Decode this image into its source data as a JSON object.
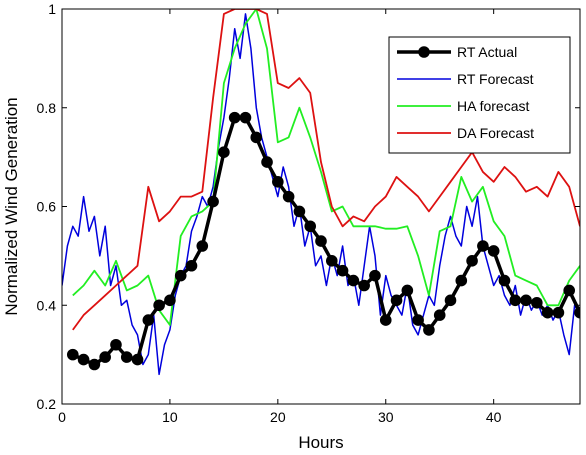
{
  "chart_data": {
    "type": "line",
    "title": "",
    "xlabel": "Hours",
    "ylabel": "Normalized Wind Generation",
    "xlim": [
      0,
      48
    ],
    "ylim": [
      0.2,
      1
    ],
    "x_ticks": [
      0,
      10,
      20,
      30,
      40
    ],
    "y_ticks": [
      0.2,
      0.4,
      0.6,
      0.8,
      1
    ],
    "grid": false,
    "legend_position": "top-right",
    "series": [
      {
        "name": "RT Actual",
        "color": "#000000",
        "marker": "circle",
        "x": [
          1,
          2,
          3,
          4,
          5,
          6,
          7,
          8,
          9,
          10,
          11,
          12,
          13,
          14,
          15,
          16,
          17,
          18,
          19,
          20,
          21,
          22,
          23,
          24,
          25,
          26,
          27,
          28,
          29,
          30,
          31,
          32,
          33,
          34,
          35,
          36,
          37,
          38,
          39,
          40,
          41,
          42,
          43,
          44,
          45,
          46,
          47,
          48
        ],
        "y": [
          0.3,
          0.29,
          0.28,
          0.295,
          0.32,
          0.295,
          0.29,
          0.37,
          0.4,
          0.41,
          0.46,
          0.48,
          0.52,
          0.61,
          0.71,
          0.78,
          0.78,
          0.74,
          0.69,
          0.65,
          0.62,
          0.59,
          0.56,
          0.53,
          0.49,
          0.47,
          0.45,
          0.44,
          0.46,
          0.37,
          0.41,
          0.43,
          0.37,
          0.35,
          0.38,
          0.41,
          0.45,
          0.49,
          0.52,
          0.51,
          0.45,
          0.41,
          0.41,
          0.405,
          0.385,
          0.385,
          0.43,
          0.385
        ]
      },
      {
        "name": "RT Forecast",
        "color": "#0000dd",
        "x": [
          0,
          0.5,
          1,
          1.5,
          2,
          2.5,
          3,
          3.5,
          4,
          4.5,
          5,
          5.5,
          6,
          6.5,
          7,
          7.5,
          8,
          8.5,
          9,
          9.5,
          10,
          10.5,
          11,
          11.5,
          12,
          12.5,
          13,
          13.5,
          14,
          14.5,
          15,
          15.5,
          16,
          16.5,
          17,
          17.5,
          18,
          18.5,
          19,
          19.5,
          20,
          20.5,
          21,
          21.5,
          22,
          22.5,
          23,
          23.5,
          24,
          24.5,
          25,
          25.5,
          26,
          26.5,
          27,
          27.5,
          28,
          28.5,
          29,
          29.5,
          30,
          30.5,
          31,
          31.5,
          32,
          32.5,
          33,
          33.5,
          34,
          34.5,
          35,
          35.5,
          36,
          36.5,
          37,
          37.5,
          38,
          38.5,
          39,
          39.5,
          40,
          40.5,
          41,
          41.5,
          42,
          42.5,
          43,
          43.5,
          44,
          44.5,
          45,
          45.5,
          46,
          46.5,
          47,
          47.5,
          48
        ],
        "y": [
          0.44,
          0.52,
          0.56,
          0.54,
          0.62,
          0.55,
          0.58,
          0.5,
          0.56,
          0.44,
          0.48,
          0.4,
          0.41,
          0.36,
          0.34,
          0.28,
          0.3,
          0.38,
          0.26,
          0.32,
          0.35,
          0.42,
          0.46,
          0.48,
          0.55,
          0.58,
          0.62,
          0.6,
          0.64,
          0.72,
          0.78,
          0.86,
          0.96,
          0.9,
          0.99,
          0.92,
          0.8,
          0.74,
          0.7,
          0.66,
          0.62,
          0.68,
          0.64,
          0.56,
          0.6,
          0.52,
          0.56,
          0.48,
          0.5,
          0.44,
          0.5,
          0.46,
          0.52,
          0.44,
          0.46,
          0.4,
          0.48,
          0.56,
          0.5,
          0.38,
          0.46,
          0.42,
          0.4,
          0.38,
          0.44,
          0.36,
          0.34,
          0.38,
          0.42,
          0.4,
          0.48,
          0.54,
          0.58,
          0.54,
          0.52,
          0.6,
          0.56,
          0.62,
          0.52,
          0.48,
          0.44,
          0.46,
          0.42,
          0.4,
          0.44,
          0.38,
          0.42,
          0.39,
          0.41,
          0.38,
          0.4,
          0.37,
          0.39,
          0.34,
          0.3,
          0.4,
          0.38
        ]
      },
      {
        "name": "HA forecast",
        "color": "#22ee22",
        "x": [
          1,
          2,
          3,
          4,
          5,
          6,
          7,
          8,
          9,
          10,
          11,
          12,
          13,
          14,
          15,
          16,
          17,
          18,
          19,
          20,
          21,
          22,
          23,
          24,
          25,
          26,
          27,
          28,
          29,
          30,
          31,
          32,
          33,
          34,
          35,
          36,
          37,
          38,
          39,
          40,
          41,
          42,
          43,
          44,
          45,
          46,
          47,
          48
        ],
        "y": [
          0.42,
          0.44,
          0.47,
          0.44,
          0.49,
          0.43,
          0.44,
          0.46,
          0.39,
          0.36,
          0.54,
          0.58,
          0.59,
          0.61,
          0.85,
          0.92,
          0.97,
          1.0,
          0.92,
          0.73,
          0.74,
          0.8,
          0.74,
          0.67,
          0.59,
          0.6,
          0.56,
          0.56,
          0.56,
          0.555,
          0.555,
          0.56,
          0.5,
          0.42,
          0.55,
          0.56,
          0.66,
          0.61,
          0.64,
          0.57,
          0.54,
          0.46,
          0.45,
          0.44,
          0.4,
          0.4,
          0.45,
          0.48
        ]
      },
      {
        "name": "DA Forecast",
        "color": "#dd1111",
        "x": [
          1,
          2,
          3,
          4,
          5,
          6,
          7,
          8,
          9,
          10,
          11,
          12,
          13,
          14,
          15,
          16,
          17,
          18,
          19,
          20,
          21,
          22,
          23,
          24,
          25,
          26,
          27,
          28,
          29,
          30,
          31,
          32,
          33,
          34,
          35,
          36,
          37,
          38,
          39,
          40,
          41,
          42,
          43,
          44,
          45,
          46,
          47,
          48
        ],
        "y": [
          0.35,
          0.38,
          0.4,
          0.42,
          0.44,
          0.46,
          0.48,
          0.64,
          0.57,
          0.59,
          0.62,
          0.62,
          0.63,
          0.82,
          0.99,
          1.0,
          1.0,
          1.0,
          0.99,
          0.85,
          0.84,
          0.86,
          0.83,
          0.69,
          0.6,
          0.56,
          0.58,
          0.57,
          0.6,
          0.62,
          0.66,
          0.64,
          0.62,
          0.59,
          0.62,
          0.65,
          0.68,
          0.71,
          0.67,
          0.65,
          0.68,
          0.66,
          0.63,
          0.64,
          0.62,
          0.67,
          0.64,
          0.56
        ]
      }
    ]
  }
}
